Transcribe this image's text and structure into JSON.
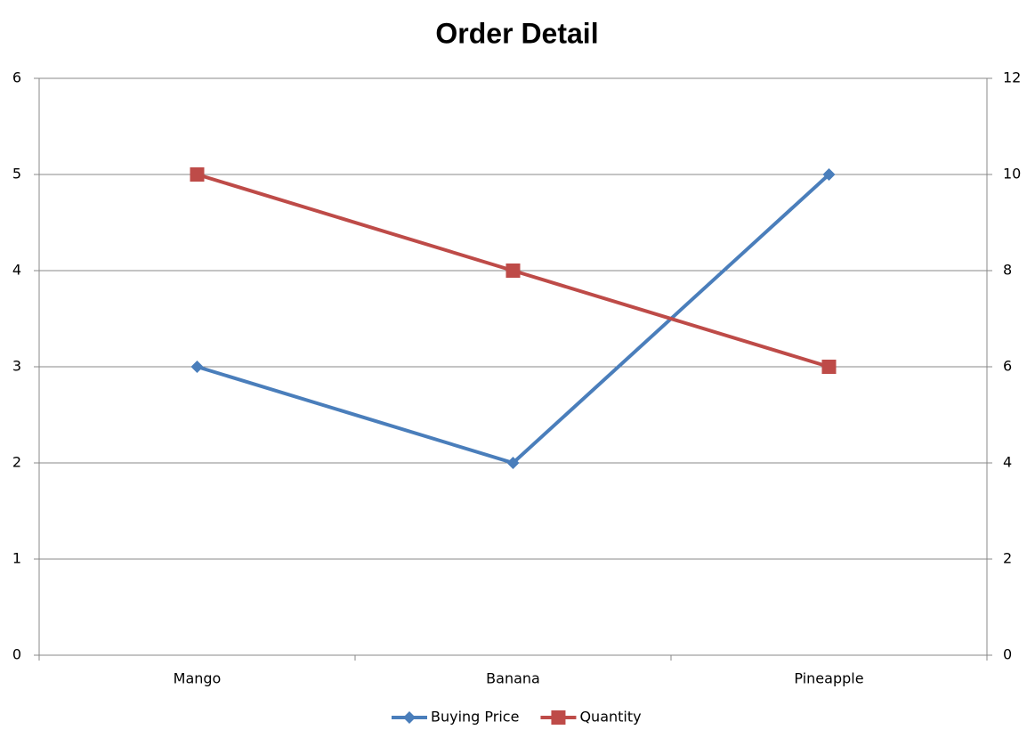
{
  "chart_data": {
    "type": "line",
    "title": "Order Detail",
    "categories": [
      "Mango",
      "Banana",
      "Pineapple"
    ],
    "series": [
      {
        "name": "Buying Price",
        "color": "#4a7ebb",
        "marker": "diamond",
        "values": [
          3,
          2,
          5
        ]
      },
      {
        "name": "Quantity",
        "color": "#be4b48",
        "marker": "square",
        "axis": "y2",
        "values": [
          10,
          8,
          6
        ]
      }
    ],
    "ylim": [
      0,
      6
    ],
    "yticks": [
      0,
      1,
      2,
      3,
      4,
      5,
      6
    ],
    "y2lim": [
      0,
      12
    ],
    "y2ticks": [
      0,
      2,
      4,
      6,
      8,
      10,
      12
    ],
    "grid": true,
    "legend": "bottom"
  }
}
